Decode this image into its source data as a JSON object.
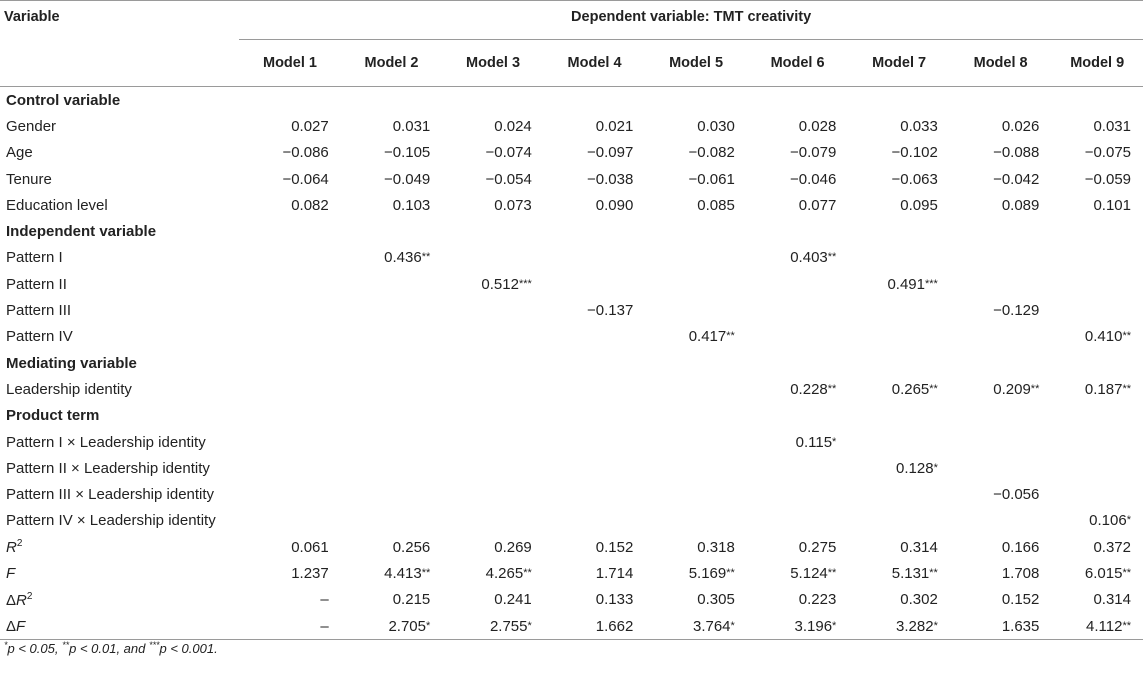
{
  "header": {
    "variable_label": "Variable",
    "dependent_label": "Dependent variable: TMT creativity",
    "models": [
      "Model 1",
      "Model 2",
      "Model 3",
      "Model 4",
      "Model 5",
      "Model 6",
      "Model 7",
      "Model 8",
      "Model 9"
    ]
  },
  "rows": [
    {
      "type": "section",
      "label": "Control variable"
    },
    {
      "type": "data",
      "label": "Gender",
      "cells": [
        "0.027",
        "0.031",
        "0.024",
        "0.021",
        "0.030",
        "0.028",
        "0.033",
        "0.026",
        "0.031"
      ]
    },
    {
      "type": "data",
      "label": "Age",
      "cells": [
        "−0.086",
        "−0.105",
        "−0.074",
        "−0.097",
        "−0.082",
        "−0.079",
        "−0.102",
        "−0.088",
        "−0.075"
      ]
    },
    {
      "type": "data",
      "label": "Tenure",
      "cells": [
        "−0.064",
        "−0.049",
        "−0.054",
        "−0.038",
        "−0.061",
        "−0.046",
        "−0.063",
        "−0.042",
        "−0.059"
      ]
    },
    {
      "type": "data",
      "label": "Education level",
      "cells": [
        "0.082",
        "0.103",
        "0.073",
        "0.090",
        "0.085",
        "0.077",
        "0.095",
        "0.089",
        "0.101"
      ]
    },
    {
      "type": "section",
      "label": "Independent variable"
    },
    {
      "type": "data",
      "label": "Pattern I",
      "cells": [
        "",
        "0.436**",
        "",
        "",
        "",
        "0.403**",
        "",
        "",
        ""
      ]
    },
    {
      "type": "data",
      "label": "Pattern II",
      "cells": [
        "",
        "",
        "0.512***",
        "",
        "",
        "",
        "0.491***",
        "",
        ""
      ]
    },
    {
      "type": "data",
      "label": "Pattern III",
      "cells": [
        "",
        "",
        "",
        "−0.137",
        "",
        "",
        "",
        "−0.129",
        ""
      ]
    },
    {
      "type": "data",
      "label": "Pattern IV",
      "cells": [
        "",
        "",
        "",
        "",
        "0.417**",
        "",
        "",
        "",
        "0.410**"
      ]
    },
    {
      "type": "section",
      "label": "Mediating variable"
    },
    {
      "type": "data",
      "label": "Leadership identity",
      "cells": [
        "",
        "",
        "",
        "",
        "",
        "0.228**",
        "0.265**",
        "0.209**",
        "0.187**"
      ]
    },
    {
      "type": "section",
      "label": "Product term"
    },
    {
      "type": "data",
      "label": "Pattern I × Leadership identity",
      "cells": [
        "",
        "",
        "",
        "",
        "",
        "0.115*",
        "",
        "",
        ""
      ]
    },
    {
      "type": "data",
      "label": "Pattern II × Leadership identity",
      "cells": [
        "",
        "",
        "",
        "",
        "",
        "",
        "0.128*",
        "",
        ""
      ]
    },
    {
      "type": "data",
      "label": "Pattern III × Leadership identity",
      "cells": [
        "",
        "",
        "",
        "",
        "",
        "",
        "",
        "−0.056",
        ""
      ]
    },
    {
      "type": "data",
      "label": "Pattern IV × Leadership identity",
      "cells": [
        "",
        "",
        "",
        "",
        "",
        "",
        "",
        "",
        "0.106*"
      ]
    },
    {
      "type": "stat",
      "label_main": "R",
      "label_sup": "2",
      "cells": [
        "0.061",
        "0.256",
        "0.269",
        "0.152",
        "0.318",
        "0.275",
        "0.314",
        "0.166",
        "0.372"
      ]
    },
    {
      "type": "stat",
      "label_main": "F",
      "label_sup": "",
      "cells": [
        "1.237",
        "4.413**",
        "4.265**",
        "1.714",
        "5.169**",
        "5.124**",
        "5.131**",
        "1.708",
        "6.015**"
      ]
    },
    {
      "type": "stat",
      "label_prefix": "Δ",
      "label_main": "R",
      "label_sup": "2",
      "cells": [
        "–",
        "0.215",
        "0.241",
        "0.133",
        "0.305",
        "0.223",
        "0.302",
        "0.152",
        "0.314"
      ]
    },
    {
      "type": "stat",
      "label_prefix": "Δ",
      "label_main": "F",
      "label_sup": "",
      "cells": [
        "–",
        "2.705*",
        "2.755*",
        "1.662",
        "3.764*",
        "3.196*",
        "3.282*",
        "1.635",
        "4.112**"
      ]
    }
  ],
  "note": {
    "parts": [
      {
        "sup": "*",
        "text": "p < 0.05, "
      },
      {
        "sup": "**",
        "text": "p < 0.01, and "
      },
      {
        "sup": "***",
        "text": "p < 0.001."
      }
    ]
  }
}
